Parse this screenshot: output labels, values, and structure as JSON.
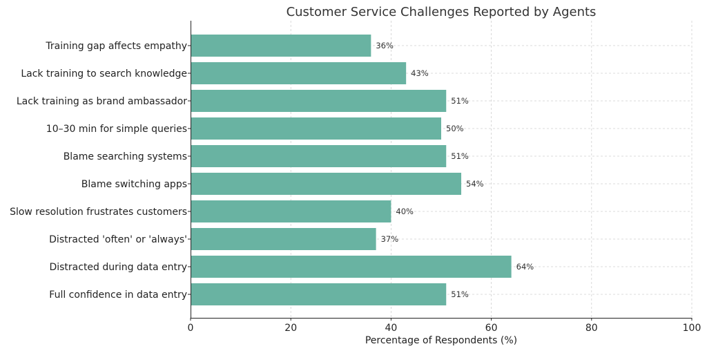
{
  "chart_data": {
    "type": "bar",
    "orientation": "horizontal",
    "title": "Customer Service Challenges Reported by Agents",
    "xlabel": "Percentage of Respondents (%)",
    "ylabel": "",
    "xlim": [
      0,
      100
    ],
    "xticks": [
      0,
      20,
      40,
      60,
      80,
      100
    ],
    "grid": true,
    "bar_color": "#69b3a2",
    "value_suffix": "%",
    "categories": [
      "Training gap affects empathy",
      "Lack training to search knowledge",
      "Lack training as brand ambassador",
      "10–30 min for simple queries",
      "Blame searching systems",
      "Blame switching apps",
      "Slow resolution frustrates customers",
      "Distracted 'often' or 'always'",
      "Distracted during data entry",
      "Full confidence in data entry"
    ],
    "values": [
      36,
      43,
      51,
      50,
      51,
      54,
      40,
      37,
      64,
      51
    ]
  }
}
